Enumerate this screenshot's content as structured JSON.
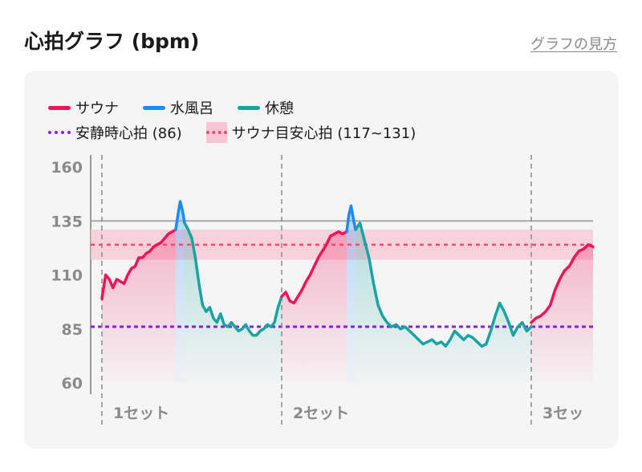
{
  "header": {
    "title": "心拍グラフ (bpm)",
    "guide_link": "グラフの見方"
  },
  "colors": {
    "sauna": "#f0145a",
    "mizuburo": "#1a8cff",
    "kyukei": "#1aa3a3",
    "resting": "#8a1ee6",
    "target_band": "#f7c5d3",
    "target_line": "#f04a78",
    "card_bg": "#f5f5f5"
  },
  "legend": {
    "sauna": "サウナ",
    "mizuburo": "水風呂",
    "kyukei": "休憩",
    "resting": "安静時心拍 (86)",
    "target": "サウナ目安心拍 (117~131)"
  },
  "chart_data": {
    "type": "line",
    "title": "心拍グラフ (bpm)",
    "ylim": [
      60,
      160
    ],
    "y_ticks": [
      160,
      135,
      110,
      85,
      60
    ],
    "x_ticks": [
      "1セット",
      "2セット",
      "3セッ"
    ],
    "reference_lines": {
      "resting_hr": 86,
      "upper_line": 135,
      "target_line": 124,
      "target_band": [
        117,
        131
      ]
    },
    "segments": [
      {
        "phase": "sauna",
        "values": [
          99,
          110,
          108,
          104,
          108,
          107,
          106,
          110,
          113,
          114,
          118,
          118,
          120,
          121,
          123,
          124,
          125,
          127,
          129,
          130,
          131
        ]
      },
      {
        "phase": "mizuburo",
        "values": [
          131,
          138,
          144,
          140,
          134
        ]
      },
      {
        "phase": "kyukei",
        "values": [
          134,
          131,
          127,
          118,
          106,
          96,
          93,
          95,
          90,
          88,
          92,
          87,
          86,
          88,
          86,
          84,
          85,
          87,
          84,
          82,
          82,
          84,
          85,
          87,
          86,
          88,
          95,
          100
        ]
      },
      {
        "phase": "sauna",
        "values": [
          100,
          102,
          98,
          97,
          100,
          103,
          107,
          110,
          114,
          118,
          121,
          124,
          128,
          129,
          130,
          129,
          130
        ]
      },
      {
        "phase": "mizuburo",
        "values": [
          130,
          138,
          142,
          136,
          131
        ]
      },
      {
        "phase": "kyukei",
        "values": [
          131,
          134,
          126,
          118,
          106,
          96,
          91,
          88,
          86,
          87,
          85,
          86,
          84,
          82,
          80,
          78,
          79,
          80,
          78,
          79,
          77,
          80,
          84,
          82,
          80,
          82,
          81,
          79,
          77,
          78,
          84,
          91,
          97,
          93,
          88,
          82,
          86,
          88,
          84,
          86
        ]
      },
      {
        "phase": "sauna",
        "values": [
          88,
          90,
          91,
          93,
          96,
          103,
          108,
          112,
          114,
          118,
          121,
          122,
          124,
          123
        ]
      }
    ]
  }
}
